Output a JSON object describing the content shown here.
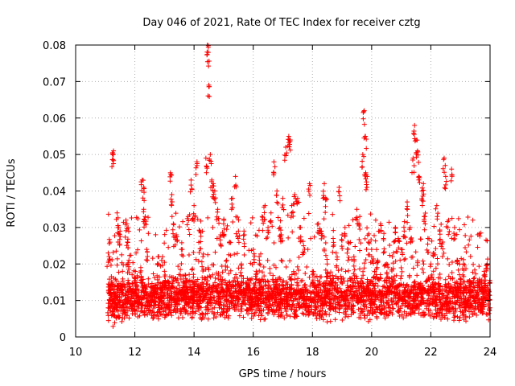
{
  "chart_data": {
    "type": "scatter",
    "title": "Day 046 of 2021, Rate Of TEC Index for receiver cztg",
    "xlabel": "GPS time / hours",
    "ylabel": "ROTI / TECUs",
    "xlim": [
      10,
      24
    ],
    "ylim": [
      0,
      0.08
    ],
    "x_ticks": [
      10,
      12,
      14,
      16,
      18,
      20,
      22,
      24
    ],
    "x_tick_labels": [
      "10",
      "12",
      "14",
      "16",
      "18",
      "20",
      "22",
      "24"
    ],
    "y_ticks": [
      0,
      0.01,
      0.02,
      0.03,
      0.04,
      0.05,
      0.06,
      0.07,
      0.08
    ],
    "y_tick_labels": [
      "0",
      "0.01",
      "0.02",
      "0.03",
      "0.04",
      "0.05",
      "0.06",
      "0.07",
      "0.08"
    ],
    "grid": true,
    "marker": "+",
    "marker_color": "#ff0000",
    "series": [
      {
        "name": "ROTI",
        "color": "#ff0000",
        "data_range_x": [
          11.1,
          24.0
        ],
        "typical_band_y": [
          0.004,
          0.016
        ],
        "points": [
          [
            11.1,
            0.008
          ],
          [
            11.1,
            0.023
          ],
          [
            11.15,
            0.012
          ],
          [
            11.2,
            0.015
          ],
          [
            11.25,
            0.0505
          ],
          [
            11.28,
            0.051
          ],
          [
            11.3,
            0.006
          ],
          [
            11.35,
            0.01
          ],
          [
            11.4,
            0.034
          ],
          [
            11.45,
            0.03
          ],
          [
            11.5,
            0.029
          ],
          [
            11.55,
            0.013
          ],
          [
            11.6,
            0.008
          ],
          [
            11.7,
            0.032
          ],
          [
            11.75,
            0.026
          ],
          [
            11.8,
            0.021
          ],
          [
            11.9,
            0.009
          ],
          [
            12.0,
            0.016
          ],
          [
            12.1,
            0.011
          ],
          [
            12.2,
            0.019
          ],
          [
            12.25,
            0.043
          ],
          [
            12.3,
            0.041
          ],
          [
            12.3,
            0.035
          ],
          [
            12.35,
            0.033
          ],
          [
            12.4,
            0.024
          ],
          [
            12.5,
            0.012
          ],
          [
            12.6,
            0.007
          ],
          [
            12.7,
            0.014
          ],
          [
            12.8,
            0.022
          ],
          [
            12.9,
            0.01
          ],
          [
            13.0,
            0.018
          ],
          [
            13.1,
            0.009
          ],
          [
            13.2,
            0.045
          ],
          [
            13.25,
            0.039
          ],
          [
            13.3,
            0.031
          ],
          [
            13.4,
            0.028
          ],
          [
            13.5,
            0.013
          ],
          [
            13.6,
            0.024
          ],
          [
            13.7,
            0.017
          ],
          [
            13.8,
            0.033
          ],
          [
            13.9,
            0.043
          ],
          [
            14.0,
            0.036
          ],
          [
            14.1,
            0.048
          ],
          [
            14.2,
            0.029
          ],
          [
            14.3,
            0.022
          ],
          [
            14.4,
            0.049
          ],
          [
            14.45,
            0.08
          ],
          [
            14.48,
            0.078
          ],
          [
            14.5,
            0.069
          ],
          [
            14.55,
            0.05
          ],
          [
            14.6,
            0.043
          ],
          [
            14.65,
            0.042
          ],
          [
            14.7,
            0.04
          ],
          [
            14.8,
            0.035
          ],
          [
            14.9,
            0.028
          ],
          [
            15.0,
            0.031
          ],
          [
            15.1,
            0.021
          ],
          [
            15.2,
            0.026
          ],
          [
            15.3,
            0.038
          ],
          [
            15.4,
            0.044
          ],
          [
            15.5,
            0.029
          ],
          [
            15.6,
            0.02
          ],
          [
            15.7,
            0.028
          ],
          [
            15.8,
            0.016
          ],
          [
            15.9,
            0.012
          ],
          [
            16.0,
            0.024
          ],
          [
            16.1,
            0.018
          ],
          [
            16.2,
            0.022
          ],
          [
            16.3,
            0.033
          ],
          [
            16.4,
            0.036
          ],
          [
            16.5,
            0.03
          ],
          [
            16.6,
            0.034
          ],
          [
            16.7,
            0.048
          ],
          [
            16.8,
            0.04
          ],
          [
            16.9,
            0.03
          ],
          [
            16.95,
            0.028
          ],
          [
            17.0,
            0.038
          ],
          [
            17.1,
            0.052
          ],
          [
            17.2,
            0.055
          ],
          [
            17.25,
            0.054
          ],
          [
            17.3,
            0.036
          ],
          [
            17.4,
            0.039
          ],
          [
            17.5,
            0.038
          ],
          [
            17.6,
            0.03
          ],
          [
            17.7,
            0.025
          ],
          [
            17.8,
            0.013
          ],
          [
            17.9,
            0.042
          ],
          [
            18.0,
            0.018
          ],
          [
            18.1,
            0.011
          ],
          [
            18.2,
            0.031
          ],
          [
            18.3,
            0.029
          ],
          [
            18.4,
            0.042
          ],
          [
            18.45,
            0.038
          ],
          [
            18.5,
            0.02
          ],
          [
            18.6,
            0.016
          ],
          [
            18.7,
            0.027
          ],
          [
            18.8,
            0.023
          ],
          [
            18.9,
            0.041
          ],
          [
            19.0,
            0.028
          ],
          [
            19.1,
            0.03
          ],
          [
            19.2,
            0.026
          ],
          [
            19.3,
            0.016
          ],
          [
            19.4,
            0.022
          ],
          [
            19.5,
            0.035
          ],
          [
            19.6,
            0.033
          ],
          [
            19.7,
            0.05
          ],
          [
            19.75,
            0.062
          ],
          [
            19.78,
            0.055
          ],
          [
            19.8,
            0.045
          ],
          [
            19.85,
            0.044
          ],
          [
            19.9,
            0.026
          ],
          [
            20.0,
            0.024
          ],
          [
            20.1,
            0.018
          ],
          [
            20.2,
            0.021
          ],
          [
            20.3,
            0.031
          ],
          [
            20.4,
            0.027
          ],
          [
            20.5,
            0.02
          ],
          [
            20.6,
            0.016
          ],
          [
            20.7,
            0.022
          ],
          [
            20.8,
            0.03
          ],
          [
            20.9,
            0.027
          ],
          [
            21.0,
            0.024
          ],
          [
            21.1,
            0.029
          ],
          [
            21.2,
            0.037
          ],
          [
            21.3,
            0.03
          ],
          [
            21.4,
            0.049
          ],
          [
            21.45,
            0.058
          ],
          [
            21.5,
            0.054
          ],
          [
            21.55,
            0.051
          ],
          [
            21.6,
            0.044
          ],
          [
            21.7,
            0.04
          ],
          [
            21.75,
            0.042
          ],
          [
            21.8,
            0.033
          ],
          [
            21.9,
            0.027
          ],
          [
            22.0,
            0.02
          ],
          [
            22.1,
            0.023
          ],
          [
            22.2,
            0.036
          ],
          [
            22.3,
            0.029
          ],
          [
            22.4,
            0.026
          ],
          [
            22.45,
            0.049
          ],
          [
            22.5,
            0.044
          ],
          [
            22.6,
            0.032
          ],
          [
            22.7,
            0.046
          ],
          [
            22.8,
            0.03
          ],
          [
            22.9,
            0.021
          ],
          [
            23.0,
            0.016
          ],
          [
            23.1,
            0.02
          ],
          [
            23.2,
            0.012
          ],
          [
            23.3,
            0.014
          ],
          [
            23.5,
            0.011
          ],
          [
            23.7,
            0.009
          ],
          [
            23.8,
            0.018
          ],
          [
            23.9,
            0.02
          ],
          [
            23.95,
            0.013
          ],
          [
            24.0,
            0.008
          ]
        ]
      }
    ]
  }
}
